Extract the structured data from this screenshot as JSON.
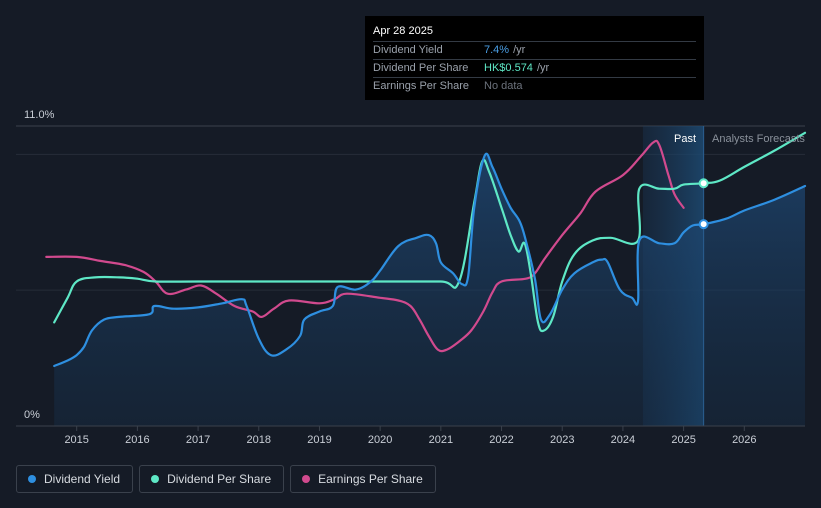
{
  "tooltip": {
    "date": "Apr 28 2025",
    "rows": [
      {
        "label": "Dividend Yield",
        "value": "7.4%",
        "unit": "/yr",
        "color": "#4a9fe6"
      },
      {
        "label": "Dividend Per Share",
        "value": "HK$0.574",
        "unit": "/yr",
        "color": "#5ee8c6"
      },
      {
        "label": "Earnings Per Share",
        "value": "No data",
        "unit": "",
        "color": "#6c727c"
      }
    ]
  },
  "legend": [
    {
      "label": "Dividend Yield",
      "color": "#2e8fe0"
    },
    {
      "label": "Dividend Per Share",
      "color": "#5ee8c6"
    },
    {
      "label": "Earnings Per Share",
      "color": "#d14a8e"
    }
  ],
  "chart_data": {
    "type": "line",
    "y_top_label": "11.0%",
    "y_bottom_label": "0%",
    "ylim": [
      0,
      11.0
    ],
    "xlim": [
      2014.0,
      2027.0
    ],
    "x_ticks": [
      "2015",
      "2016",
      "2017",
      "2018",
      "2019",
      "2020",
      "2021",
      "2022",
      "2023",
      "2024",
      "2025",
      "2026"
    ],
    "grid": true,
    "past_label": "Past",
    "forecast_label": "Analysts Forecasts",
    "forecast_start": 2025.33,
    "highlight_start": 2024.33,
    "series": [
      {
        "name": "Dividend Yield",
        "color": "#2e8fe0",
        "area": true,
        "points": [
          [
            2014.63,
            2.2
          ],
          [
            2014.85,
            2.4
          ],
          [
            2015.0,
            2.6
          ],
          [
            2015.12,
            2.9
          ],
          [
            2015.25,
            3.5
          ],
          [
            2015.45,
            3.9
          ],
          [
            2015.7,
            4.0
          ],
          [
            2016.2,
            4.1
          ],
          [
            2016.28,
            4.4
          ],
          [
            2016.6,
            4.3
          ],
          [
            2017.0,
            4.35
          ],
          [
            2017.4,
            4.5
          ],
          [
            2017.72,
            4.65
          ],
          [
            2017.8,
            4.4
          ],
          [
            2018.0,
            3.2
          ],
          [
            2018.2,
            2.6
          ],
          [
            2018.45,
            2.8
          ],
          [
            2018.68,
            3.3
          ],
          [
            2018.75,
            3.9
          ],
          [
            2019.0,
            4.2
          ],
          [
            2019.22,
            4.4
          ],
          [
            2019.3,
            5.1
          ],
          [
            2019.6,
            5.0
          ],
          [
            2019.85,
            5.3
          ],
          [
            2020.0,
            5.7
          ],
          [
            2020.3,
            6.6
          ],
          [
            2020.6,
            6.9
          ],
          [
            2020.8,
            7.0
          ],
          [
            2020.92,
            6.7
          ],
          [
            2021.0,
            6.0
          ],
          [
            2021.2,
            5.6
          ],
          [
            2021.35,
            5.2
          ],
          [
            2021.45,
            5.5
          ],
          [
            2021.55,
            8.0
          ],
          [
            2021.72,
            9.9
          ],
          [
            2021.85,
            9.5
          ],
          [
            2022.0,
            8.7
          ],
          [
            2022.15,
            8.0
          ],
          [
            2022.3,
            7.5
          ],
          [
            2022.4,
            6.8
          ],
          [
            2022.55,
            5.4
          ],
          [
            2022.65,
            3.9
          ],
          [
            2022.8,
            4.1
          ],
          [
            2023.0,
            5.0
          ],
          [
            2023.2,
            5.6
          ],
          [
            2023.5,
            6.0
          ],
          [
            2023.65,
            6.1
          ],
          [
            2023.75,
            6.0
          ],
          [
            2023.95,
            5.0
          ],
          [
            2024.15,
            4.7
          ],
          [
            2024.25,
            4.6
          ],
          [
            2024.27,
            6.8
          ],
          [
            2024.6,
            6.7
          ],
          [
            2024.85,
            6.7
          ],
          [
            2025.0,
            7.1
          ],
          [
            2025.15,
            7.35
          ],
          [
            2025.33,
            7.4
          ],
          [
            2025.7,
            7.6
          ],
          [
            2026.0,
            7.9
          ],
          [
            2026.5,
            8.3
          ],
          [
            2027.0,
            8.8
          ]
        ],
        "marker": [
          2025.33,
          7.4
        ]
      },
      {
        "name": "Dividend Per Share",
        "color": "#5ee8c6",
        "area": false,
        "points": [
          [
            2014.63,
            3.8
          ],
          [
            2014.85,
            4.7
          ],
          [
            2015.0,
            5.3
          ],
          [
            2015.3,
            5.45
          ],
          [
            2015.7,
            5.45
          ],
          [
            2016.0,
            5.4
          ],
          [
            2016.3,
            5.3
          ],
          [
            2017.0,
            5.3
          ],
          [
            2018.0,
            5.3
          ],
          [
            2019.0,
            5.3
          ],
          [
            2019.2,
            5.3
          ],
          [
            2020.0,
            5.3
          ],
          [
            2021.0,
            5.3
          ],
          [
            2021.3,
            5.3
          ],
          [
            2021.55,
            8.2
          ],
          [
            2021.68,
            9.7
          ],
          [
            2021.8,
            9.3
          ],
          [
            2022.0,
            8.0
          ],
          [
            2022.15,
            7.0
          ],
          [
            2022.28,
            6.4
          ],
          [
            2022.38,
            6.7
          ],
          [
            2022.48,
            5.6
          ],
          [
            2022.6,
            3.8
          ],
          [
            2022.7,
            3.5
          ],
          [
            2022.85,
            4.0
          ],
          [
            2023.0,
            5.3
          ],
          [
            2023.2,
            6.3
          ],
          [
            2023.5,
            6.8
          ],
          [
            2023.8,
            6.9
          ],
          [
            2024.25,
            6.8
          ],
          [
            2024.27,
            8.7
          ],
          [
            2024.6,
            8.7
          ],
          [
            2024.85,
            8.7
          ],
          [
            2025.0,
            8.85
          ],
          [
            2025.33,
            8.9
          ],
          [
            2025.6,
            9.0
          ],
          [
            2026.0,
            9.5
          ],
          [
            2026.5,
            10.1
          ],
          [
            2027.0,
            10.75
          ]
        ],
        "marker": [
          2025.33,
          8.9
        ]
      },
      {
        "name": "Earnings Per Share",
        "color": "#d14a8e",
        "area": false,
        "points": [
          [
            2014.5,
            6.2
          ],
          [
            2015.0,
            6.2
          ],
          [
            2015.4,
            6.05
          ],
          [
            2015.8,
            5.9
          ],
          [
            2016.1,
            5.65
          ],
          [
            2016.3,
            5.3
          ],
          [
            2016.5,
            4.85
          ],
          [
            2016.8,
            5.0
          ],
          [
            2017.05,
            5.15
          ],
          [
            2017.3,
            4.85
          ],
          [
            2017.6,
            4.4
          ],
          [
            2017.9,
            4.2
          ],
          [
            2018.05,
            4.0
          ],
          [
            2018.25,
            4.3
          ],
          [
            2018.5,
            4.6
          ],
          [
            2019.0,
            4.5
          ],
          [
            2019.25,
            4.65
          ],
          [
            2019.45,
            4.85
          ],
          [
            2020.0,
            4.7
          ],
          [
            2020.3,
            4.6
          ],
          [
            2020.5,
            4.4
          ],
          [
            2020.65,
            3.9
          ],
          [
            2020.8,
            3.3
          ],
          [
            2020.95,
            2.8
          ],
          [
            2021.1,
            2.8
          ],
          [
            2021.3,
            3.1
          ],
          [
            2021.5,
            3.5
          ],
          [
            2021.7,
            4.2
          ],
          [
            2021.85,
            4.9
          ],
          [
            2022.0,
            5.3
          ],
          [
            2022.4,
            5.4
          ],
          [
            2022.55,
            5.6
          ],
          [
            2022.7,
            6.1
          ],
          [
            2023.0,
            7.0
          ],
          [
            2023.3,
            7.8
          ],
          [
            2023.55,
            8.6
          ],
          [
            2024.0,
            9.2
          ],
          [
            2024.3,
            9.9
          ],
          [
            2024.5,
            10.4
          ],
          [
            2024.6,
            10.3
          ],
          [
            2024.75,
            9.2
          ],
          [
            2024.85,
            8.5
          ],
          [
            2025.0,
            8.0
          ]
        ]
      }
    ]
  }
}
